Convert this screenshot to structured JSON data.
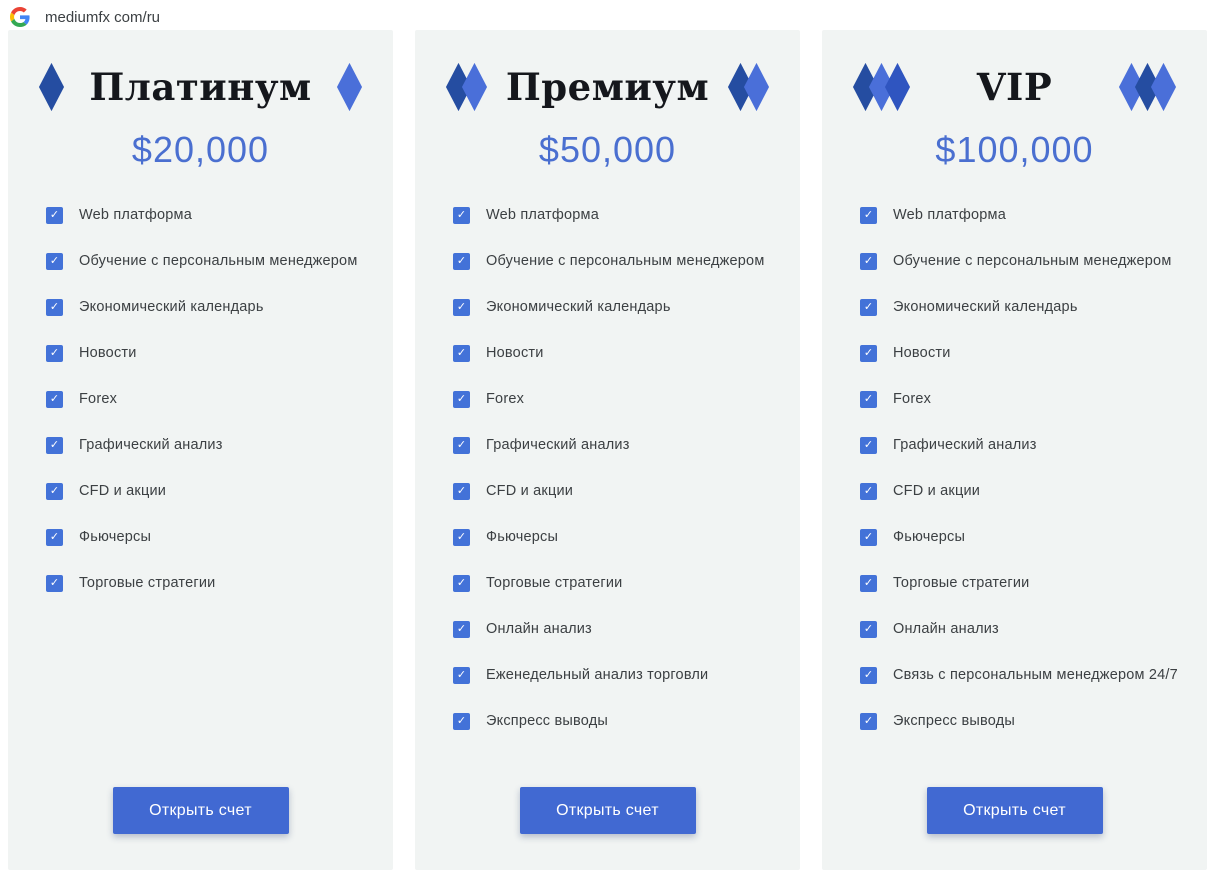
{
  "header": {
    "url_text": "mediumfx com/ru"
  },
  "icons": {
    "check": "✓"
  },
  "colors": {
    "card_bg": "#F1F4F3",
    "title": "#15171C",
    "price_blue": "#4A6FD0",
    "checkbox_blue": "#4372D8",
    "button_blue": "#4169D2",
    "feature_text": "#3C4043",
    "diamond_dark": "#254DA1",
    "diamond_medium": "#2F55C0",
    "diamond_light": "#4A6FD9"
  },
  "cards": [
    {
      "title": "Платинум",
      "price": "$20,000",
      "diamonds_left": [
        "dark"
      ],
      "diamonds_right": [
        "light"
      ],
      "features": [
        "Web платформа",
        "Обучение с персональным менеджером",
        "Экономический календарь",
        "Новости",
        "Forex",
        "Графический анализ",
        "CFD и акции",
        "Фьючерсы",
        "Торговые стратегии"
      ],
      "cta_label": "Открыть счет"
    },
    {
      "title": "Премиум",
      "price": "$50,000",
      "diamonds_left": [
        "dark",
        "light"
      ],
      "diamonds_right": [
        "dark",
        "light"
      ],
      "features": [
        "Web платформа",
        "Обучение с персональным менеджером",
        "Экономический календарь",
        "Новости",
        "Forex",
        "Графический анализ",
        "CFD и акции",
        "Фьючерсы",
        "Торговые стратегии",
        "Онлайн анализ",
        "Еженедельный анализ торговли",
        "Экспресс выводы"
      ],
      "cta_label": "Открыть счет"
    },
    {
      "title": "VIP",
      "price": "$100,000",
      "diamonds_left": [
        "dark",
        "light",
        "medium"
      ],
      "diamonds_right": [
        "light",
        "dark",
        "light"
      ],
      "features": [
        "Web платформа",
        "Обучение с персональным менеджером",
        "Экономический календарь",
        "Новости",
        "Forex",
        "Графический анализ",
        "CFD и акции",
        "Фьючерсы",
        "Торговые стратегии",
        "Онлайн анализ",
        "Связь с персональным менеджером 24/7",
        "Экспресс выводы"
      ],
      "cta_label": "Открыть счет"
    }
  ]
}
